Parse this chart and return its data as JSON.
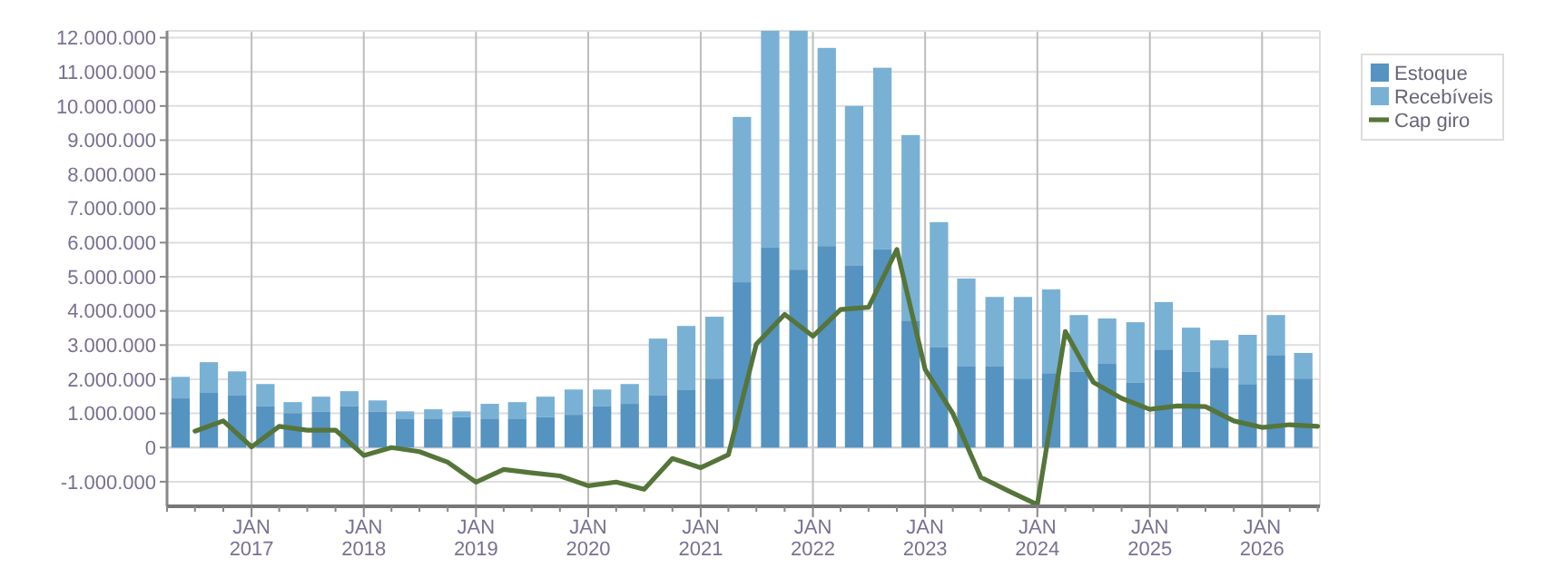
{
  "chart_data": {
    "type": "bar",
    "stacked": true,
    "grid": true,
    "legend": "top right",
    "xlim": [
      "2016-04-01",
      "2026-07-08"
    ],
    "ylim": [
      -1720000,
      12200000
    ],
    "yticks": [
      {
        "value": -1000000,
        "label": "-1.000.000"
      },
      0,
      {
        "value": 1000000,
        "label": "1.000.000"
      },
      {
        "value": 2000000,
        "label": "2.000.000"
      },
      {
        "value": 3000000,
        "label": "3.000.000"
      },
      {
        "value": 4000000,
        "label": "4.000.000"
      },
      {
        "value": 5000000,
        "label": "5.000.000"
      },
      {
        "value": 6000000,
        "label": "6.000.000"
      },
      {
        "value": 7000000,
        "label": "7.000.000"
      },
      {
        "value": 8000000,
        "label": "8.000.000"
      },
      {
        "value": 9000000,
        "label": "9.000.000"
      },
      {
        "value": 10000000,
        "label": "10.000.000"
      },
      {
        "value": 11000000,
        "label": "11.000.000"
      },
      {
        "value": 12000000,
        "label": "12.000.000"
      }
    ],
    "xticks": [
      {
        "value": "2016-04-01",
        "label": null
      },
      {
        "value": "2016-07-01",
        "label": null
      },
      {
        "value": "2016-10-01",
        "label": null
      },
      {
        "value": "2017-01-01",
        "label": "JAN\n2017"
      },
      {
        "value": "2017-04-01",
        "label": null
      },
      {
        "value": "2017-07-01",
        "label": null
      },
      {
        "value": "2017-10-01",
        "label": null
      },
      {
        "value": "2018-01-01",
        "label": "JAN\n2018"
      },
      {
        "value": "2018-04-01",
        "label": null
      },
      {
        "value": "2018-07-01",
        "label": null
      },
      {
        "value": "2018-10-01",
        "label": null
      },
      {
        "value": "2019-01-01",
        "label": "JAN\n2019"
      },
      {
        "value": "2019-04-01",
        "label": null
      },
      {
        "value": "2019-07-01",
        "label": null
      },
      {
        "value": "2019-10-01",
        "label": null
      },
      {
        "value": "2020-01-01",
        "label": "JAN\n2020"
      },
      {
        "value": "2020-04-01",
        "label": null
      },
      {
        "value": "2020-07-01",
        "label": null
      },
      {
        "value": "2020-10-01",
        "label": null
      },
      {
        "value": "2021-01-01",
        "label": "JAN\n2021"
      },
      {
        "value": "2021-04-01",
        "label": null
      },
      {
        "value": "2021-07-01",
        "label": null
      },
      {
        "value": "2021-10-01",
        "label": null
      },
      {
        "value": "2022-01-01",
        "label": "JAN\n2022"
      },
      {
        "value": "2022-04-01",
        "label": null
      },
      {
        "value": "2022-07-01",
        "label": null
      },
      {
        "value": "2022-10-01",
        "label": null
      },
      {
        "value": "2023-01-01",
        "label": "JAN\n2023"
      },
      {
        "value": "2023-04-01",
        "label": null
      },
      {
        "value": "2023-07-01",
        "label": null
      },
      {
        "value": "2023-10-01",
        "label": null
      },
      {
        "value": "2024-01-01",
        "label": "JAN\n2024"
      },
      {
        "value": "2024-04-01",
        "label": null
      },
      {
        "value": "2024-07-01",
        "label": null
      },
      {
        "value": "2024-10-01",
        "label": null
      },
      {
        "value": "2025-01-01",
        "label": "JAN\n2025"
      },
      {
        "value": "2025-04-01",
        "label": null
      },
      {
        "value": "2025-07-01",
        "label": null
      },
      {
        "value": "2025-10-01",
        "label": null
      },
      {
        "value": "2026-01-01",
        "label": "JAN\n2026"
      },
      {
        "value": "2026-04-01",
        "label": null
      },
      {
        "value": "2026-07-01",
        "label": null
      }
    ],
    "series": [
      {
        "name": "Estoque",
        "color": "#5593c1",
        "x": [
          "2016-05-15",
          "2016-08-15",
          "2016-11-15",
          "2017-02-15",
          "2017-05-15",
          "2017-08-15",
          "2017-11-15",
          "2018-02-15",
          "2018-05-15",
          "2018-08-15",
          "2018-11-15",
          "2019-02-15",
          "2019-05-15",
          "2019-08-15",
          "2019-11-15",
          "2020-02-15",
          "2020-05-15",
          "2020-08-15",
          "2020-11-15",
          "2021-02-15",
          "2021-05-15",
          "2021-08-15",
          "2021-11-15",
          "2022-02-15",
          "2022-05-15",
          "2022-08-15",
          "2022-11-15",
          "2023-02-15",
          "2023-05-15",
          "2023-08-15",
          "2023-11-15",
          "2024-02-15",
          "2024-05-15",
          "2024-08-15",
          "2024-11-15",
          "2025-02-15",
          "2025-05-15",
          "2025-08-15",
          "2025-11-15",
          "2026-02-15",
          "2026-05-15"
        ],
        "values": [
          1440000,
          1600000,
          1540000,
          1220000,
          1010000,
          1060000,
          1220000,
          1060000,
          850000,
          850000,
          900000,
          850000,
          850000,
          900000,
          960000,
          1220000,
          1280000,
          1540000,
          1700000,
          2020000,
          4840000,
          5850000,
          5210000,
          5900000,
          5320000,
          5800000,
          3720000,
          2930000,
          2390000,
          2390000,
          2020000,
          2180000,
          2230000,
          2450000,
          1910000,
          2870000,
          2230000,
          2340000,
          1860000,
          2710000,
          2020000
        ]
      },
      {
        "name": "Recebíveis",
        "color": "#79b1d4",
        "x": [
          "2016-05-15",
          "2016-08-15",
          "2016-11-15",
          "2017-02-15",
          "2017-05-15",
          "2017-08-15",
          "2017-11-15",
          "2018-02-15",
          "2018-05-15",
          "2018-08-15",
          "2018-11-15",
          "2019-02-15",
          "2019-05-15",
          "2019-08-15",
          "2019-11-15",
          "2020-02-15",
          "2020-05-15",
          "2020-08-15",
          "2020-11-15",
          "2021-02-15",
          "2021-05-15",
          "2021-08-15",
          "2021-11-15",
          "2022-02-15",
          "2022-05-15",
          "2022-08-15",
          "2022-11-15",
          "2023-02-15",
          "2023-05-15",
          "2023-08-15",
          "2023-11-15",
          "2024-02-15",
          "2024-05-15",
          "2024-08-15",
          "2024-11-15",
          "2025-02-15",
          "2025-05-15",
          "2025-08-15",
          "2025-11-15",
          "2026-02-15",
          "2026-05-15"
        ],
        "values": [
          630000,
          900000,
          690000,
          640000,
          320000,
          430000,
          430000,
          320000,
          210000,
          270000,
          160000,
          430000,
          480000,
          590000,
          740000,
          480000,
          580000,
          1650000,
          1860000,
          1810000,
          4840000,
          6350000,
          6990000,
          5800000,
          4680000,
          5320000,
          5430000,
          3670000,
          2560000,
          2020000,
          2390000,
          2450000,
          1650000,
          1330000,
          1760000,
          1390000,
          1280000,
          800000,
          1440000,
          1170000,
          750000
        ]
      },
      {
        "name": "Cap giro",
        "type": "line",
        "color": "#557539",
        "x": [
          "2016-07-01",
          "2016-10-01",
          "2017-01-01",
          "2017-04-01",
          "2017-07-01",
          "2017-10-01",
          "2018-01-01",
          "2018-04-01",
          "2018-07-01",
          "2018-10-01",
          "2019-01-01",
          "2019-04-01",
          "2019-07-01",
          "2019-10-01",
          "2020-01-01",
          "2020-04-01",
          "2020-07-01",
          "2020-10-01",
          "2021-01-01",
          "2021-04-01",
          "2021-07-01",
          "2021-10-01",
          "2022-01-01",
          "2022-04-01",
          "2022-07-01",
          "2022-10-01",
          "2023-01-01",
          "2023-04-01",
          "2023-07-01",
          "2023-10-01",
          "2024-01-01",
          "2024-04-01",
          "2024-07-01",
          "2024-10-01",
          "2025-01-01",
          "2025-04-01",
          "2025-07-01",
          "2025-10-01",
          "2026-01-01",
          "2026-04-01",
          "2026-07-01"
        ],
        "values": [
          480000,
          780000,
          20000,
          620000,
          510000,
          510000,
          -230000,
          0,
          -120000,
          -430000,
          -1010000,
          -640000,
          -740000,
          -830000,
          -1120000,
          -1010000,
          -1220000,
          -320000,
          -590000,
          -210000,
          3030000,
          3900000,
          3260000,
          4040000,
          4110000,
          5800000,
          2290000,
          1000000,
          -870000,
          -1280000,
          -1670000,
          3400000,
          1910000,
          1440000,
          1120000,
          1220000,
          1200000,
          780000,
          590000,
          670000,
          620000
        ]
      }
    ]
  }
}
